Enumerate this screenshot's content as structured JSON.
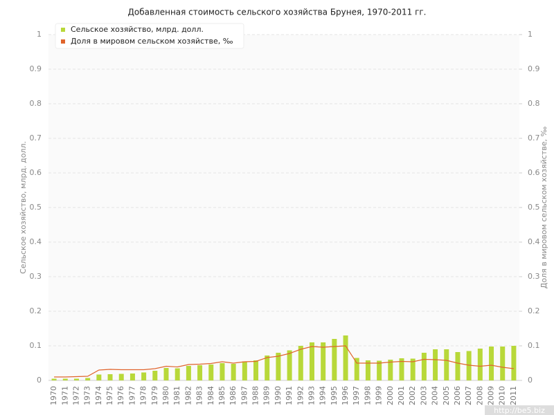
{
  "chart_data": {
    "type": "bar-line",
    "title": "Добавленная стоимость сельского хозяйства Брунея, 1970-2011 гг.",
    "y_label": "Сельское хозяйство, млрд. долл.",
    "y2_label": "Доля в мировом сельском хозяйстве, ‰",
    "watermark": "http://be5.biz",
    "categories": [
      "1970",
      "1971",
      "1972",
      "1973",
      "1974",
      "1975",
      "1976",
      "1977",
      "1978",
      "1979",
      "1980",
      "1981",
      "1982",
      "1983",
      "1984",
      "1985",
      "1986",
      "1987",
      "1988",
      "1989",
      "1990",
      "1991",
      "1992",
      "1993",
      "1994",
      "1995",
      "1996",
      "1997",
      "1998",
      "1999",
      "2000",
      "2001",
      "2002",
      "2003",
      "2004",
      "2005",
      "2006",
      "2007",
      "2008",
      "2009",
      "2010",
      "2011"
    ],
    "series": [
      {
        "name": "Сельское хозяйство, млрд. долл.",
        "type": "bar",
        "color": "#b8d839",
        "values": [
          0.005,
          0.005,
          0.005,
          0.007,
          0.017,
          0.018,
          0.019,
          0.02,
          0.023,
          0.028,
          0.036,
          0.035,
          0.042,
          0.044,
          0.046,
          0.05,
          0.048,
          0.055,
          0.058,
          0.072,
          0.08,
          0.087,
          0.1,
          0.11,
          0.11,
          0.12,
          0.13,
          0.065,
          0.058,
          0.057,
          0.06,
          0.064,
          0.063,
          0.08,
          0.09,
          0.09,
          0.082,
          0.085,
          0.092,
          0.098,
          0.098,
          0.1
        ]
      },
      {
        "name": "Доля в мировом сельском хозяйстве, ‰",
        "type": "line",
        "axis": "y2",
        "color": "#e0642c",
        "values": [
          0.01,
          0.01,
          0.011,
          0.012,
          0.03,
          0.032,
          0.031,
          0.031,
          0.031,
          0.034,
          0.041,
          0.039,
          0.046,
          0.047,
          0.049,
          0.054,
          0.05,
          0.054,
          0.055,
          0.066,
          0.07,
          0.078,
          0.09,
          0.098,
          0.096,
          0.098,
          0.1,
          0.05,
          0.05,
          0.05,
          0.053,
          0.055,
          0.054,
          0.061,
          0.06,
          0.058,
          0.05,
          0.044,
          0.041,
          0.044,
          0.038,
          0.034
        ]
      }
    ],
    "ylim": [
      0,
      1
    ],
    "yticks": [
      0,
      0.1,
      0.2,
      0.3,
      0.4,
      0.5,
      0.6,
      0.7,
      0.8,
      0.9,
      1
    ],
    "y2lim": [
      0,
      1
    ],
    "y2ticks": [
      0,
      0.1,
      0.2,
      0.3,
      0.4,
      0.5,
      0.6,
      0.7,
      0.8,
      0.9,
      1
    ],
    "grid": true,
    "legend": "top-left"
  }
}
